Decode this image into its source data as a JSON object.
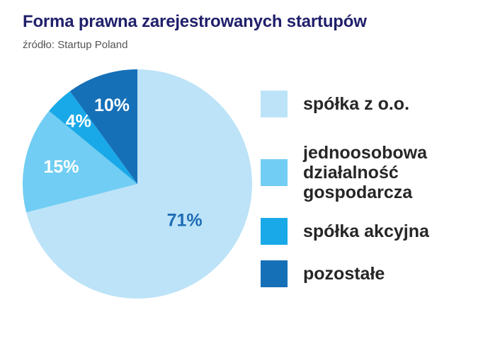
{
  "header": {
    "title": "Forma prawna zarejestrowanych startupów",
    "source": "źródło: Startup Poland"
  },
  "chart_data": {
    "type": "pie",
    "title": "Forma prawna zarejestrowanych startupów",
    "subtitle": "źródło: Startup Poland",
    "start_angle": "12 o'clock",
    "direction": "clockwise",
    "slices": [
      {
        "label": "spółka z o.o.",
        "value": 71,
        "display": "71%",
        "color": "#bde3f8",
        "text_color": "#1d6cb4"
      },
      {
        "label": "jednoosobowa\ndziałalność\ngospodarcza",
        "value": 15,
        "display": "15%",
        "color": "#71cdf3",
        "text_color": "#ffffff"
      },
      {
        "label": "spółka akcyjna",
        "value": 4,
        "display": "4%",
        "color": "#1aa9e8",
        "text_color": "#ffffff"
      },
      {
        "label": "pozostałe",
        "value": 10,
        "display": "10%",
        "color": "#1570b8",
        "text_color": "#ffffff"
      }
    ],
    "legend_position": "right"
  }
}
